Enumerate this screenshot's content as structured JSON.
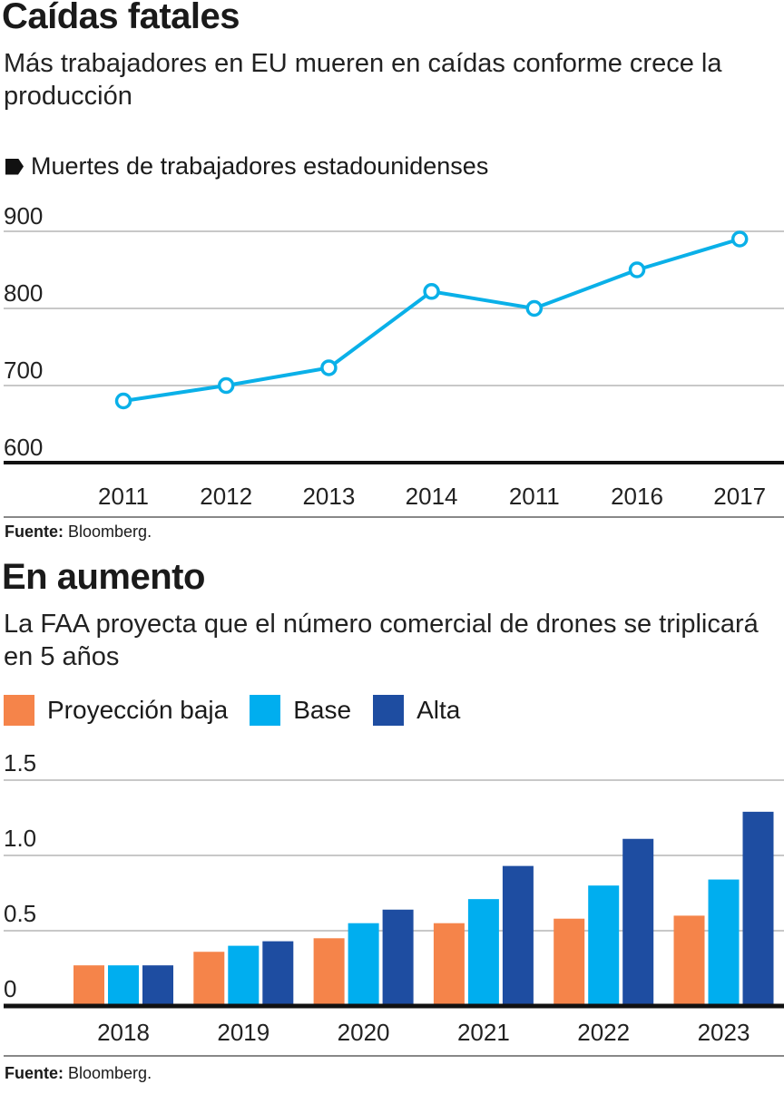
{
  "chart_data": [
    {
      "type": "line",
      "title": "Caídas fatales",
      "subtitle": "Más trabajadores en EU mueren en caídas conforme crece la producción",
      "series_label": "Muertes de trabajadores estadounidenses",
      "categories": [
        "2011",
        "2012",
        "2013",
        "2014",
        "2011",
        "2016",
        "2017"
      ],
      "values": [
        680,
        700,
        723,
        822,
        800,
        850,
        890
      ],
      "yticks": [
        "600",
        "700",
        "800",
        "900"
      ],
      "ylim": [
        600,
        900
      ],
      "grid": true,
      "color": "#0ab0e8",
      "source_label": "Fuente:",
      "source": "Bloomberg."
    },
    {
      "type": "bar",
      "title": "En aumento",
      "subtitle": "La FAA proyecta que el número comercial de drones se triplicará en 5 años",
      "categories": [
        "2018",
        "2019",
        "2020",
        "2021",
        "2022",
        "2023"
      ],
      "series": [
        {
          "name": "Proyección baja",
          "color": "#f5844a",
          "values": [
            0.27,
            0.36,
            0.45,
            0.55,
            0.58,
            0.6
          ]
        },
        {
          "name": "Base",
          "color": "#00aeef",
          "values": [
            0.27,
            0.4,
            0.55,
            0.71,
            0.8,
            0.84
          ]
        },
        {
          "name": "Alta",
          "color": "#1e4da1",
          "values": [
            0.27,
            0.43,
            0.64,
            0.93,
            1.11,
            1.29
          ]
        }
      ],
      "yticks": [
        "0",
        "0.5",
        "1.0",
        "1.5"
      ],
      "ylim": [
        0,
        1.5
      ],
      "grid": true,
      "legend": "top-left",
      "source_label": "Fuente:",
      "source": "Bloomberg."
    }
  ]
}
